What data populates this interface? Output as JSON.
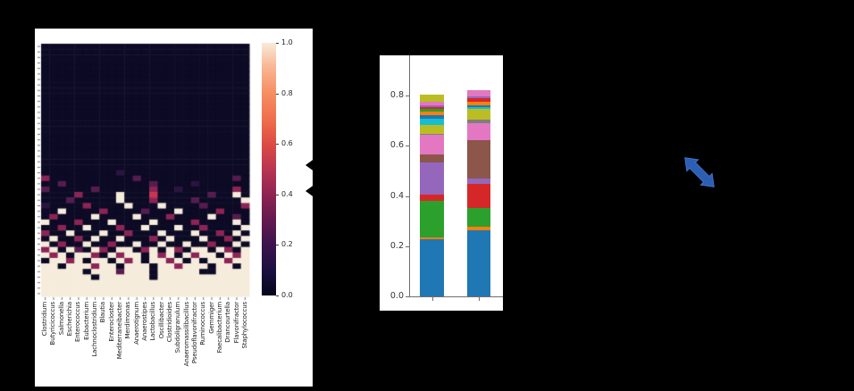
{
  "slide": {
    "background": "#000000"
  },
  "chart_data": [
    {
      "type": "heatmap",
      "title": "",
      "xlabel": "",
      "ylabel": "",
      "x_categories": [
        "Clostridium",
        "Butyricicoccus",
        "Salmonella",
        "Escherichia",
        "Enterococcus",
        "Eubacterium",
        "Lachnoclostridium",
        "Blautia",
        "Enterocloster",
        "Mediterraneibacter",
        "Merdimonas",
        "Anaerotignum",
        "Anaerostipes",
        "Lactobacillus",
        "Oscillibacter",
        "Clostridioides",
        "Subdoligranulum",
        "Anaeromassilibacillus",
        "Pseudoflavonifractor",
        "Ruminococcus",
        "Gemmiger",
        "Faecalibacterium",
        "Drancourtella",
        "Flavonifractor",
        "Staphylococcus"
      ],
      "n_rows": 46,
      "rows": [
        ".........................",
        ".........................",
        ".........................",
        ".........................",
        ".........................",
        ".........................",
        ".........................",
        ".........................",
        ".........................",
        ".........................",
        ".........................",
        ".........................",
        ".........................",
        ".........................",
        ".........................",
        ".........................",
        ".........................",
        ".........................",
        ".........................",
        ".........................",
        ".........................",
        ".........................",
        ".........................",
        ".........1...............",
        "3..........2...........2.",
        "..2..........2....1......",
        "2.....2......3..1......3.",
        "....3....#...4......2..#.",
        "...2.....#...3....2.....#",
        "1....3....#...#....2....3",
        "..#....3....2...#....3...",
        ".3....#....#...3....#..2.",
        "#...3...#....#....3....#.",
        "..3..#...3..#...#..3....#",
        "3..#...#..3...#...#..3.#.",
        ".#..3.#..#...3.#...#..3.#",
        "#.3..#..3..#..#..#..3..#.",
        "3#.#2.#3.##.3#.#3.##.#3.#",
        "#3#.##3.#3##.#3#.#3##.#3#",
        ".##3#.##.#3#.##3#.#.##3##",
        "##.###3##.###.##3###.##.#",
        "#####.###2###.#####..####",
        "######.######.###########",
        "#########################",
        "#########################",
        "#########################"
      ],
      "palette": {
        ".": "#0c0a24",
        "1": "#2b1440",
        "2": "#571c4f",
        "3": "#8d2455",
        "4": "#c9344f",
        "#": "#f6ecdc"
      },
      "value_range": [
        0.0,
        1.0
      ],
      "colorbar_ticks": [
        1.0,
        0.8,
        0.6,
        0.4,
        0.2,
        0.0
      ],
      "colorbar_gradient": [
        "#03051b",
        "#1b1040",
        "#3c124e",
        "#641a50",
        "#8e2452",
        "#b93450",
        "#dd4b43",
        "#f06f4d",
        "#f68d63",
        "#f8b490",
        "#f8ead9"
      ],
      "grid_on": false,
      "legend_position": "colorbar-right"
    },
    {
      "type": "bar",
      "stacked": true,
      "title": "",
      "xlabel": "",
      "ylabel": "",
      "categories": [
        "",
        ""
      ],
      "y_ticks": [
        0.0,
        0.2,
        0.4,
        0.6,
        0.8
      ],
      "ylim": [
        0.0,
        0.96
      ],
      "grid_on": false,
      "bars": [
        {
          "segments": [
            {
              "color": "#1f77b4",
              "value": 0.228
            },
            {
              "color": "#ff7f0e",
              "value": 0.008
            },
            {
              "color": "#2ca02c",
              "value": 0.145
            },
            {
              "color": "#d62728",
              "value": 0.026
            },
            {
              "color": "#9467bd",
              "value": 0.128
            },
            {
              "color": "#8c564b",
              "value": 0.03
            },
            {
              "color": "#e377c2",
              "value": 0.078
            },
            {
              "color": "#7f7f7f",
              "value": 0.005
            },
            {
              "color": "#bcbd22",
              "value": 0.036
            },
            {
              "color": "#17becf",
              "value": 0.024
            },
            {
              "color": "#1f77b4",
              "value": 0.013
            },
            {
              "color": "#ff7f0e",
              "value": 0.017
            },
            {
              "color": "#2ca02c",
              "value": 0.009
            },
            {
              "color": "#d62728",
              "value": 0.006
            },
            {
              "color": "#9467bd",
              "value": 0.009
            },
            {
              "color": "#e377c2",
              "value": 0.014
            },
            {
              "color": "#bcbd22",
              "value": 0.03
            }
          ]
        },
        {
          "segments": [
            {
              "color": "#1f77b4",
              "value": 0.263
            },
            {
              "color": "#ff7f0e",
              "value": 0.013
            },
            {
              "color": "#2ca02c",
              "value": 0.076
            },
            {
              "color": "#d62728",
              "value": 0.095
            },
            {
              "color": "#9467bd",
              "value": 0.023
            },
            {
              "color": "#8c564b",
              "value": 0.152
            },
            {
              "color": "#e377c2",
              "value": 0.068
            },
            {
              "color": "#7f7f7f",
              "value": 0.015
            },
            {
              "color": "#bcbd22",
              "value": 0.042
            },
            {
              "color": "#17becf",
              "value": 0.008
            },
            {
              "color": "#1f77b4",
              "value": 0.005
            },
            {
              "color": "#ff7f0e",
              "value": 0.016
            },
            {
              "color": "#d62728",
              "value": 0.014
            },
            {
              "color": "#9467bd",
              "value": 0.007
            },
            {
              "color": "#e377c2",
              "value": 0.024
            }
          ]
        }
      ]
    }
  ],
  "annotations": {
    "black_arrows": {
      "color": "#000000",
      "count": 2,
      "direction": "left"
    },
    "blue_double_arrow": {
      "color": "#2b5eb4",
      "edge_color": "#3e74c4",
      "direction": "nw-se"
    }
  }
}
